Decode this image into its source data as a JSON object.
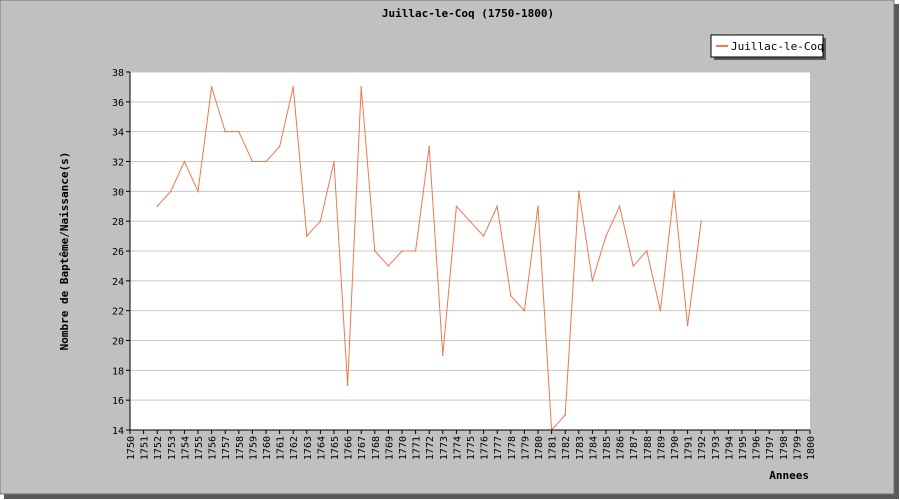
{
  "chart_data": {
    "type": "line",
    "title": "Juillac-le-Coq (1750-1800)",
    "xlabel": "Annees",
    "ylabel": "Nombre de Baptême/Naissance(s)",
    "xlim": [
      1750,
      1800
    ],
    "ylim": [
      14,
      38
    ],
    "ytick_step": 2,
    "grid": true,
    "legend_position": "top-right",
    "colors": {
      "line": "#f07850",
      "background": "#c0c0c0",
      "plot": "#ffffff",
      "shadow": "#5a5a5a"
    },
    "series": [
      {
        "name": "Juillac-le-Coq",
        "x": [
          1752,
          1753,
          1754,
          1755,
          1756,
          1757,
          1758,
          1759,
          1760,
          1761,
          1762,
          1763,
          1764,
          1765,
          1766,
          1767,
          1768,
          1769,
          1770,
          1771,
          1772,
          1773,
          1774,
          1775,
          1776,
          1777,
          1778,
          1779,
          1780,
          1781,
          1782,
          1783,
          1784,
          1785,
          1786,
          1787,
          1788,
          1789,
          1790,
          1791,
          1792
        ],
        "values": [
          29,
          30,
          32,
          30,
          37,
          34,
          34,
          32,
          32,
          33,
          37,
          27,
          28,
          32,
          17,
          37,
          26,
          25,
          26,
          26,
          33,
          19,
          29,
          28,
          27,
          29,
          23,
          22,
          29,
          14,
          15,
          30,
          24,
          27,
          29,
          25,
          26,
          22,
          30,
          21,
          28
        ]
      }
    ]
  }
}
